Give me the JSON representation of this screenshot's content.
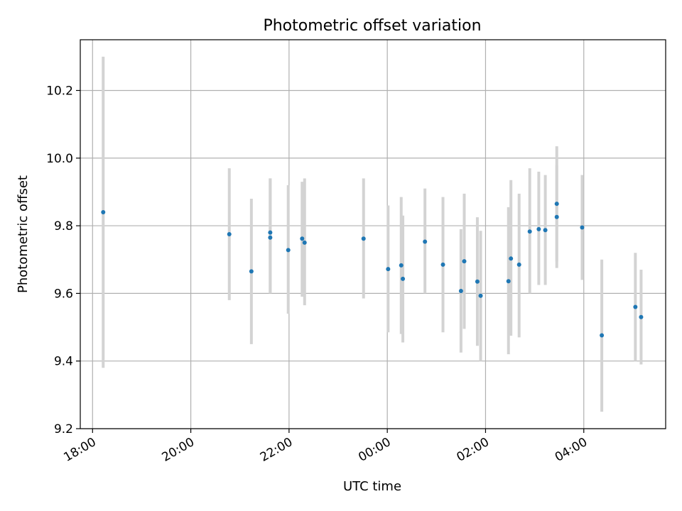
{
  "chart_data": {
    "type": "scatter",
    "title": "Photometric offset variation",
    "xlabel": "UTC time",
    "ylabel": "Photometric offset",
    "x_axis_kind": "datetime",
    "x_range": [
      "2000-01-01T17:45:00",
      "2000-01-02T05:40:00"
    ],
    "ylim": [
      9.2,
      10.35
    ],
    "x_ticks": [
      {
        "label": "18:00",
        "value": "2000-01-01T18:00:00"
      },
      {
        "label": "20:00",
        "value": "2000-01-01T20:00:00"
      },
      {
        "label": "22:00",
        "value": "2000-01-01T22:00:00"
      },
      {
        "label": "00:00",
        "value": "2000-01-02T00:00:00"
      },
      {
        "label": "02:00",
        "value": "2000-01-02T02:00:00"
      },
      {
        "label": "04:00",
        "value": "2000-01-02T04:00:00"
      }
    ],
    "y_ticks": [
      {
        "label": "9.2",
        "value": 9.2
      },
      {
        "label": "9.4",
        "value": 9.4
      },
      {
        "label": "9.6",
        "value": 9.6
      },
      {
        "label": "9.8",
        "value": 9.8
      },
      {
        "label": "10.0",
        "value": 10.0
      },
      {
        "label": "10.2",
        "value": 10.2
      }
    ],
    "grid": true,
    "x_tick_rotation": "30 degrees",
    "colors": {
      "points": "#1f77b4",
      "error_bars": "#d3d3d3",
      "grid": "#b0b0b0"
    },
    "points": [
      {
        "x": "2000-01-01T18:13:00",
        "y": 9.84,
        "y_low": 9.38,
        "y_high": 10.3
      },
      {
        "x": "2000-01-01T20:47:00",
        "y": 9.775,
        "y_low": 9.58,
        "y_high": 9.97
      },
      {
        "x": "2000-01-01T21:14:00",
        "y": 9.665,
        "y_low": 9.45,
        "y_high": 9.88
      },
      {
        "x": "2000-01-01T21:37:00",
        "y": 9.78,
        "y_low": 9.6,
        "y_high": 9.94
      },
      {
        "x": "2000-01-01T21:37:00",
        "y": 9.765,
        "y_low": 9.6,
        "y_high": 9.94
      },
      {
        "x": "2000-01-01T21:59:00",
        "y": 9.728,
        "y_low": 9.54,
        "y_high": 9.92
      },
      {
        "x": "2000-01-01T22:16:00",
        "y": 9.762,
        "y_low": 9.59,
        "y_high": 9.93
      },
      {
        "x": "2000-01-01T22:19:00",
        "y": 9.75,
        "y_low": 9.565,
        "y_high": 9.94
      },
      {
        "x": "2000-01-01T23:31:00",
        "y": 9.762,
        "y_low": 9.585,
        "y_high": 9.94
      },
      {
        "x": "2000-01-02T00:01:00",
        "y": 9.672,
        "y_low": 9.485,
        "y_high": 9.86
      },
      {
        "x": "2000-01-02T00:17:00",
        "y": 9.683,
        "y_low": 9.48,
        "y_high": 9.885
      },
      {
        "x": "2000-01-02T00:19:00",
        "y": 9.643,
        "y_low": 9.455,
        "y_high": 9.83
      },
      {
        "x": "2000-01-02T00:46:00",
        "y": 9.753,
        "y_low": 9.6,
        "y_high": 9.91
      },
      {
        "x": "2000-01-02T01:08:00",
        "y": 9.685,
        "y_low": 9.485,
        "y_high": 9.885
      },
      {
        "x": "2000-01-02T01:30:00",
        "y": 9.607,
        "y_low": 9.425,
        "y_high": 9.79
      },
      {
        "x": "2000-01-02T01:34:00",
        "y": 9.695,
        "y_low": 9.495,
        "y_high": 9.895
      },
      {
        "x": "2000-01-02T01:50:00",
        "y": 9.635,
        "y_low": 9.445,
        "y_high": 9.825
      },
      {
        "x": "2000-01-02T01:54:00",
        "y": 9.593,
        "y_low": 9.4,
        "y_high": 9.785
      },
      {
        "x": "2000-01-02T02:28:00",
        "y": 9.636,
        "y_low": 9.42,
        "y_high": 9.855
      },
      {
        "x": "2000-01-02T02:31:00",
        "y": 9.703,
        "y_low": 9.475,
        "y_high": 9.935
      },
      {
        "x": "2000-01-02T02:41:00",
        "y": 9.685,
        "y_low": 9.47,
        "y_high": 9.895
      },
      {
        "x": "2000-01-02T02:54:00",
        "y": 9.783,
        "y_low": 9.6,
        "y_high": 9.97
      },
      {
        "x": "2000-01-02T03:05:00",
        "y": 9.79,
        "y_low": 9.625,
        "y_high": 9.96
      },
      {
        "x": "2000-01-02T03:13:00",
        "y": 9.787,
        "y_low": 9.625,
        "y_high": 9.95
      },
      {
        "x": "2000-01-02T03:27:00",
        "y": 9.865,
        "y_low": 9.695,
        "y_high": 10.035
      },
      {
        "x": "2000-01-02T03:27:00",
        "y": 9.826,
        "y_low": 9.675,
        "y_high": 9.98
      },
      {
        "x": "2000-01-02T03:58:00",
        "y": 9.795,
        "y_low": 9.64,
        "y_high": 9.95
      },
      {
        "x": "2000-01-02T04:22:00",
        "y": 9.476,
        "y_low": 9.25,
        "y_high": 9.7
      },
      {
        "x": "2000-01-02T05:03:00",
        "y": 9.56,
        "y_low": 9.4,
        "y_high": 9.72
      },
      {
        "x": "2000-01-02T05:10:00",
        "y": 9.53,
        "y_low": 9.39,
        "y_high": 9.67
      }
    ]
  }
}
